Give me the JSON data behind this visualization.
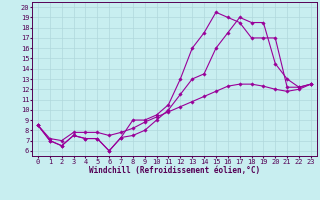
{
  "background_color": "#c8eef0",
  "grid_color": "#b0d8dc",
  "line_color": "#990099",
  "marker": "D",
  "markersize": 1.8,
  "linewidth": 0.8,
  "xlabel": "Windchill (Refroidissement éolien,°C)",
  "xlabel_fontsize": 5.5,
  "tick_fontsize": 5.0,
  "xlim": [
    -0.5,
    23.5
  ],
  "ylim": [
    5.5,
    20.5
  ],
  "yticks": [
    6,
    7,
    8,
    9,
    10,
    11,
    12,
    13,
    14,
    15,
    16,
    17,
    18,
    19,
    20
  ],
  "xticks": [
    0,
    1,
    2,
    3,
    4,
    5,
    6,
    7,
    8,
    9,
    10,
    11,
    12,
    13,
    14,
    15,
    16,
    17,
    18,
    19,
    20,
    21,
    22,
    23
  ],
  "series": [
    {
      "x": [
        0,
        1,
        2,
        3,
        4,
        5,
        6,
        7,
        8,
        9,
        10,
        11,
        12,
        13,
        14,
        15,
        16,
        17,
        18,
        19,
        20,
        21,
        22,
        23
      ],
      "y": [
        8.5,
        7.0,
        6.5,
        7.5,
        7.2,
        7.2,
        6.0,
        7.3,
        9.0,
        9.0,
        9.5,
        10.5,
        13.0,
        16.0,
        17.5,
        19.5,
        19.0,
        18.5,
        17.0,
        17.0,
        17.0,
        12.2,
        12.2,
        12.5
      ]
    },
    {
      "x": [
        0,
        1,
        2,
        3,
        4,
        5,
        6,
        7,
        8,
        9,
        10,
        11,
        12,
        13,
        14,
        15,
        16,
        17,
        18,
        19,
        20,
        21,
        22,
        23
      ],
      "y": [
        8.5,
        7.0,
        6.5,
        7.5,
        7.2,
        7.2,
        6.0,
        7.3,
        7.5,
        8.0,
        9.0,
        10.0,
        11.5,
        13.0,
        13.5,
        16.0,
        17.5,
        19.0,
        18.5,
        18.5,
        14.5,
        13.0,
        12.2,
        12.5
      ]
    },
    {
      "x": [
        0,
        1,
        2,
        3,
        4,
        5,
        6,
        7,
        8,
        9,
        10,
        11,
        12,
        13,
        14,
        15,
        16,
        17,
        18,
        19,
        20,
        21,
        22,
        23
      ],
      "y": [
        8.5,
        7.2,
        7.0,
        7.8,
        7.8,
        7.8,
        7.5,
        7.8,
        8.2,
        8.8,
        9.3,
        9.8,
        10.3,
        10.8,
        11.3,
        11.8,
        12.3,
        12.5,
        12.5,
        12.3,
        12.0,
        11.8,
        12.0,
        12.5
      ]
    }
  ]
}
